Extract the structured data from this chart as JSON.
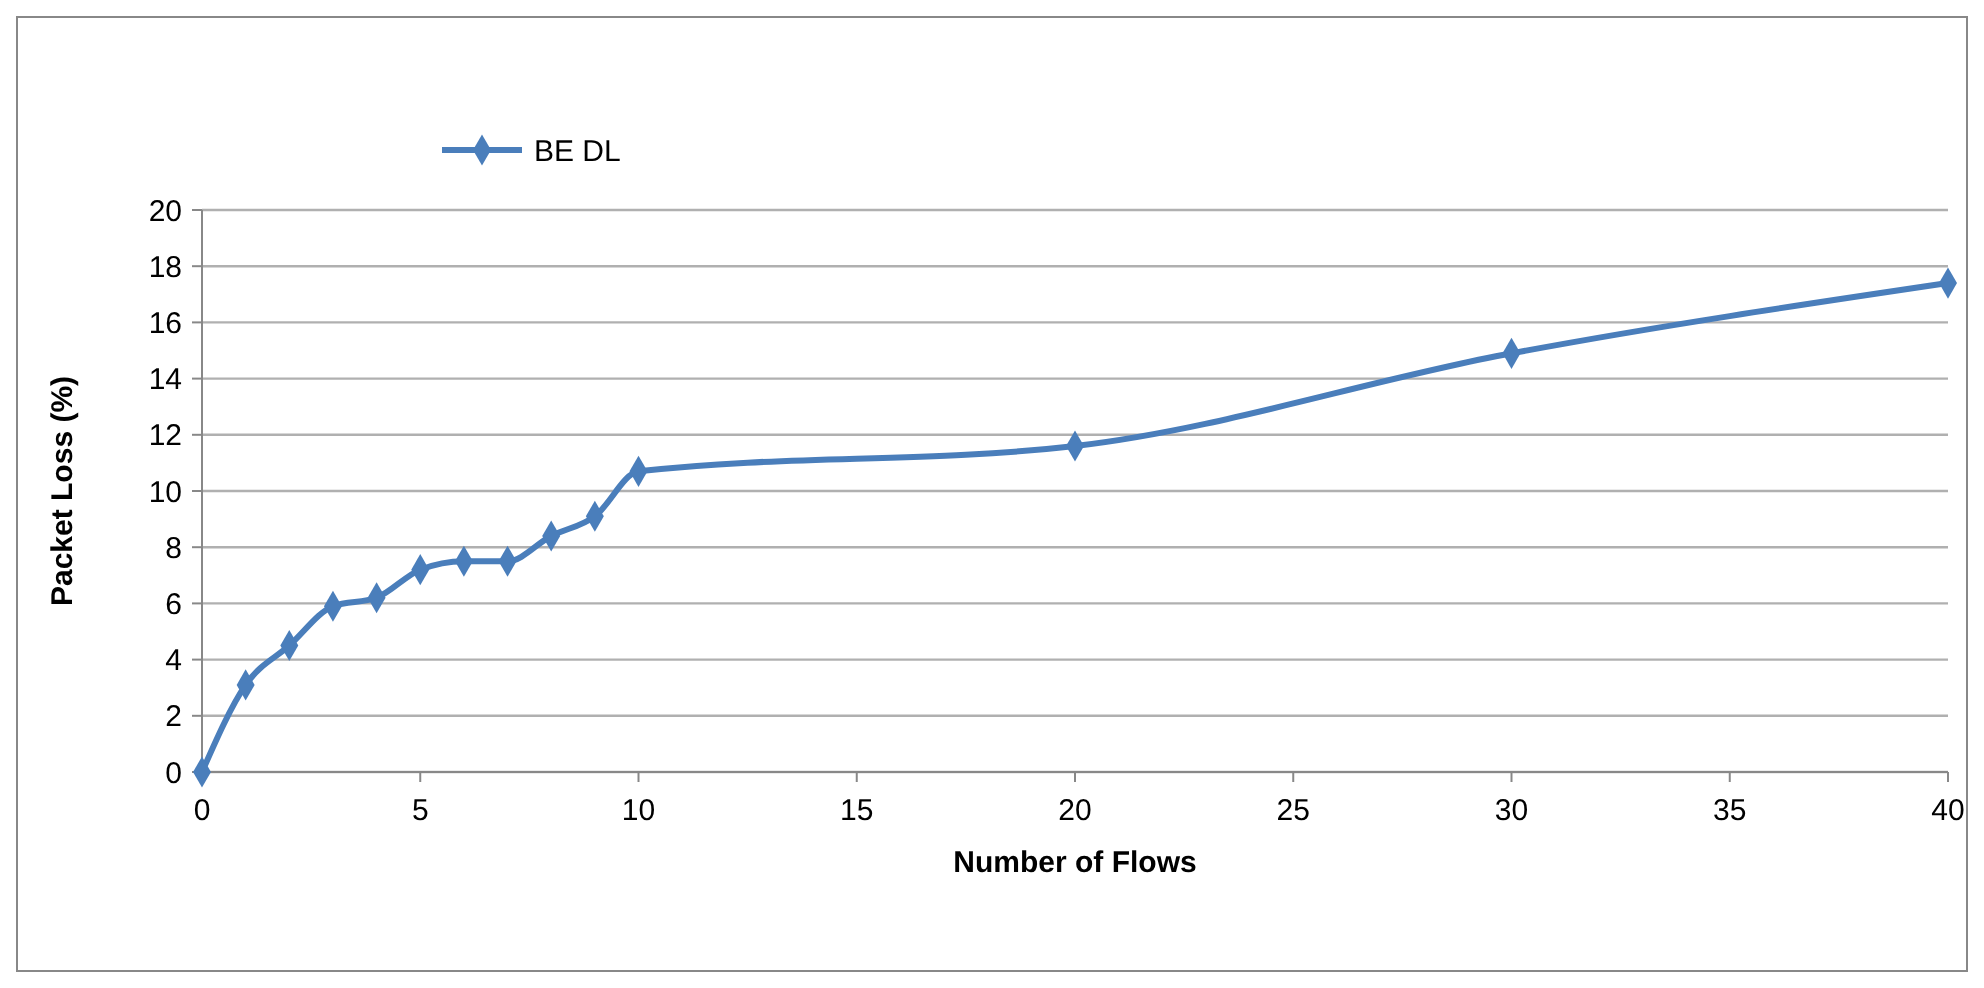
{
  "chart_data": {
    "type": "line",
    "xlabel": "Number of Flows",
    "ylabel": "Packet Loss (%)",
    "x": [
      0,
      1,
      2,
      3,
      4,
      5,
      6,
      7,
      8,
      9,
      10,
      20,
      30,
      40
    ],
    "series": [
      {
        "name": "BE DL",
        "color": "#4a7ebb",
        "values": [
          0,
          3.1,
          4.5,
          5.9,
          6.2,
          7.2,
          7.5,
          7.5,
          8.4,
          9.1,
          10.7,
          11.6,
          14.9,
          17.4
        ]
      }
    ],
    "xlim": [
      0,
      40
    ],
    "xticks": [
      0,
      5,
      10,
      15,
      20,
      25,
      30,
      35,
      40
    ],
    "ylim": [
      0,
      20
    ],
    "yticks": [
      0,
      2,
      4,
      6,
      8,
      10,
      12,
      14,
      16,
      18,
      20
    ],
    "grid": "y",
    "legend": "top left",
    "marker": "diamond",
    "line_style": "solid"
  }
}
